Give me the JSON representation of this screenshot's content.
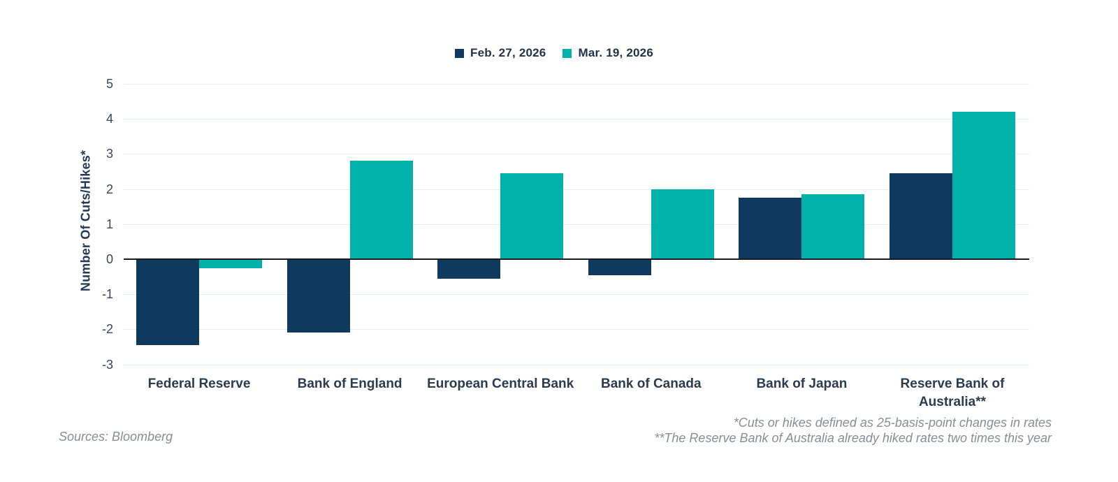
{
  "chart_data": {
    "type": "bar",
    "title": "",
    "xlabel": "",
    "ylabel": "Number Of Cuts/Hikes*",
    "ylim": [
      -3,
      5
    ],
    "yticks": [
      5,
      4,
      3,
      2,
      1,
      0,
      -1,
      -2,
      -3
    ],
    "grid": true,
    "legend_position": "top-center",
    "categories": [
      "Federal Reserve",
      "Bank of England",
      "European Central Bank",
      "Bank of Canada",
      "Bank of Japan",
      "Reserve Bank of Australia**"
    ],
    "series": [
      {
        "name": "Feb. 27, 2026",
        "color": "#0d3a5e",
        "values": [
          -2.45,
          -2.1,
          -0.55,
          -0.45,
          1.75,
          2.45
        ]
      },
      {
        "name": "Mar. 19, 2026",
        "color": "#00b2aa",
        "values": [
          -0.25,
          2.8,
          2.45,
          2.0,
          1.85,
          4.2
        ]
      }
    ]
  },
  "colors": {
    "feb_series": "#0d3a5e",
    "mar_series": "#00b2aa",
    "gridline": "#e7ecf2",
    "zero_axis": "#16191d",
    "footnote_text": "#878e99"
  },
  "footer": {
    "source": "Sources: Bloomberg",
    "footnote_1": "*Cuts or hikes defined as 25-basis-point changes in rates",
    "footnote_2": "**The Reserve Bank of Australia already hiked rates two times this year"
  }
}
